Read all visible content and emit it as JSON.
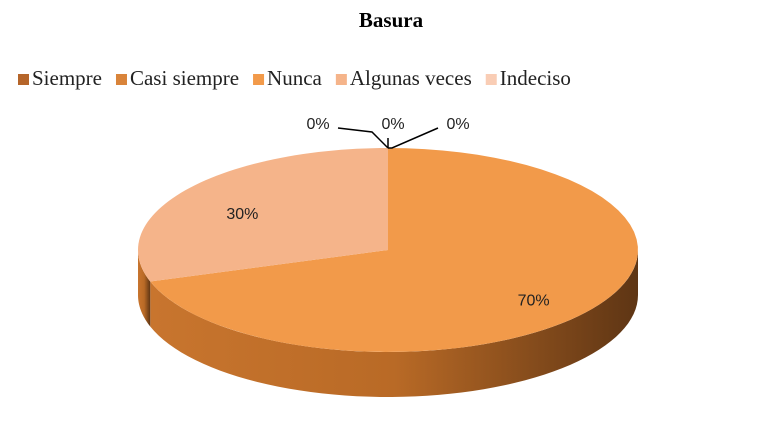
{
  "chart_data": {
    "type": "pie",
    "title": "Basura",
    "categories": [
      "Siempre",
      "Casi siempre",
      "Nunca",
      "Algunas veces",
      "Indeciso"
    ],
    "values": [
      0,
      0,
      70,
      30,
      0
    ],
    "value_labels": [
      "0%",
      "0%",
      "70%",
      "30%",
      "0%"
    ],
    "colors": [
      "#b5652a",
      "#d9843a",
      "#f29a4a",
      "#f5b48a",
      "#f9cdb5"
    ],
    "legend": "top"
  }
}
